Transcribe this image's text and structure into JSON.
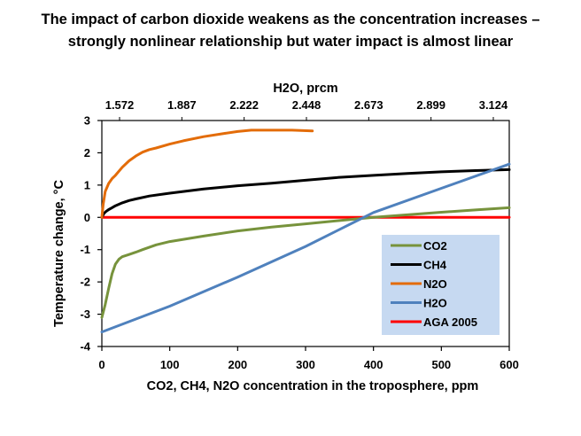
{
  "title_line1": "The impact of carbon dioxide weakens as the concentration increases –",
  "title_line2": "strongly nonlinear relationship but water impact is almost linear",
  "chart_data": {
    "type": "line",
    "xlabel": "CO2, CH4, N2O concentration in the troposphere, ppm",
    "ylabel": "Temperature change, °C",
    "top_xlabel": "H2O, prcm",
    "xlim": [
      0,
      600
    ],
    "ylim": [
      -4,
      3
    ],
    "x_ticks": [
      0,
      100,
      200,
      300,
      400,
      500,
      600
    ],
    "y_ticks": [
      -4,
      -3,
      -2,
      -1,
      0,
      1,
      2,
      3
    ],
    "top_ticks": [
      "1.572",
      "1.887",
      "2.222",
      "2.448",
      "2.673",
      "2.899",
      "3.124"
    ],
    "legend_position": "bottom-right",
    "grid": false,
    "series": [
      {
        "name": "CO2",
        "color": "#77933c",
        "x": [
          0,
          5,
          10,
          15,
          20,
          25,
          30,
          40,
          50,
          60,
          80,
          100,
          150,
          200,
          250,
          300,
          350,
          400,
          450,
          500,
          550,
          600
        ],
        "y": [
          -3.1,
          -2.7,
          -2.2,
          -1.75,
          -1.45,
          -1.3,
          -1.22,
          -1.15,
          -1.08,
          -1.0,
          -0.85,
          -0.75,
          -0.58,
          -0.42,
          -0.3,
          -0.2,
          -0.1,
          0.0,
          0.08,
          0.16,
          0.23,
          0.3
        ]
      },
      {
        "name": "CH4",
        "color": "#000000",
        "x": [
          0,
          3,
          6,
          10,
          15,
          20,
          30,
          40,
          50,
          70,
          100,
          150,
          200,
          250,
          300,
          350,
          400,
          450,
          500,
          550,
          600
        ],
        "y": [
          0.0,
          0.12,
          0.18,
          0.24,
          0.3,
          0.36,
          0.45,
          0.52,
          0.57,
          0.66,
          0.75,
          0.88,
          0.98,
          1.06,
          1.15,
          1.24,
          1.3,
          1.36,
          1.41,
          1.45,
          1.48
        ]
      },
      {
        "name": "N2O",
        "color": "#e36c09",
        "x": [
          0,
          2,
          5,
          10,
          15,
          20,
          30,
          40,
          50,
          60,
          70,
          80,
          100,
          120,
          150,
          180,
          200,
          220,
          250,
          280,
          310
        ],
        "y": [
          0.0,
          0.4,
          0.8,
          1.05,
          1.2,
          1.3,
          1.55,
          1.75,
          1.9,
          2.02,
          2.1,
          2.15,
          2.27,
          2.37,
          2.5,
          2.6,
          2.66,
          2.7,
          2.7,
          2.7,
          2.68
        ]
      },
      {
        "name": "H2O",
        "color": "#4f81bd",
        "x": [
          0,
          100,
          200,
          300,
          400,
          500,
          600
        ],
        "y": [
          -3.55,
          -2.75,
          -1.85,
          -0.9,
          0.15,
          0.9,
          1.65
        ]
      },
      {
        "name": "AGA 2005",
        "color": "#ff0000",
        "x": [
          0,
          600
        ],
        "y": [
          0,
          0
        ]
      }
    ]
  }
}
